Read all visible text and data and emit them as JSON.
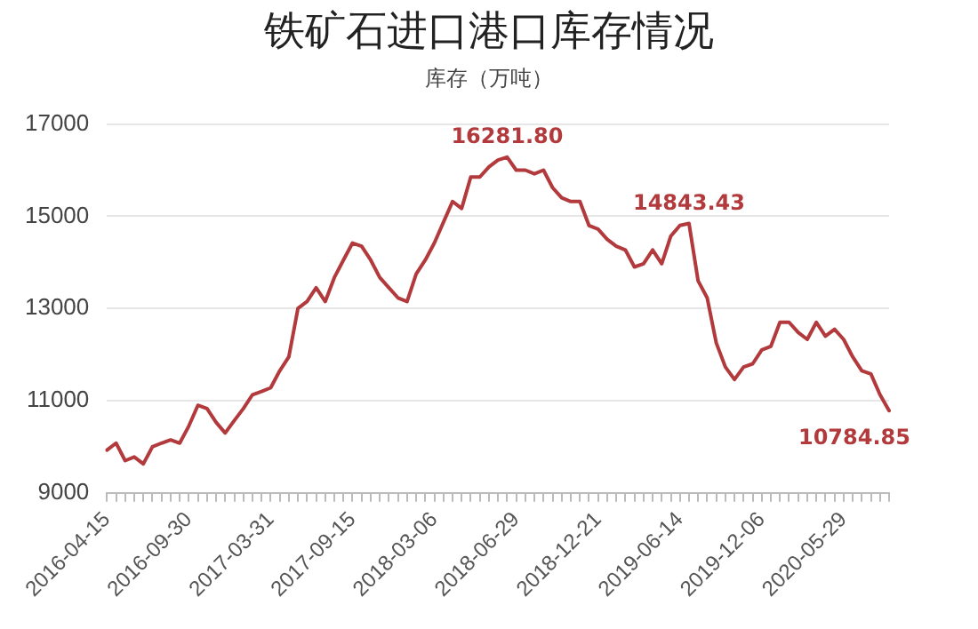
{
  "chart_data": {
    "type": "line",
    "title": "铁矿石进口港口库存情况",
    "subtitle": "库存（万吨）",
    "categories": [
      "2016-04-15",
      null,
      null,
      null,
      null,
      null,
      null,
      null,
      null,
      "2016-09-30",
      null,
      null,
      null,
      null,
      null,
      null,
      null,
      null,
      "2017-03-31",
      null,
      null,
      null,
      null,
      null,
      null,
      null,
      null,
      "2017-09-15",
      null,
      null,
      null,
      null,
      null,
      null,
      null,
      null,
      "2018-03-06",
      null,
      null,
      null,
      null,
      null,
      null,
      null,
      null,
      "2018-06-29",
      null,
      null,
      null,
      null,
      null,
      null,
      null,
      null,
      "2018-12-21",
      null,
      null,
      null,
      null,
      null,
      null,
      null,
      null,
      "2019-06-14",
      null,
      null,
      null,
      null,
      null,
      null,
      null,
      null,
      "2019-12-06",
      null,
      null,
      null,
      null,
      null,
      null,
      null,
      null,
      "2020-05-29",
      null,
      null,
      null,
      null,
      null
    ],
    "series": [
      {
        "color": "#b23a3c",
        "values": [
          9930,
          10080,
          9700,
          9780,
          9630,
          10000,
          10080,
          10150,
          10080,
          10450,
          10900,
          10830,
          10530,
          10300,
          10570,
          10830,
          11130,
          11200,
          11280,
          11650,
          11950,
          13000,
          13150,
          13450,
          13150,
          13670,
          14050,
          14420,
          14350,
          14050,
          13670,
          13450,
          13230,
          13150,
          13750,
          14050,
          14420,
          14870,
          15320,
          15170,
          15850,
          15850,
          16070,
          16220,
          16281.8,
          16000,
          16000,
          15920,
          16000,
          15620,
          15400,
          15320,
          15320,
          14800,
          14720,
          14500,
          14350,
          14270,
          13900,
          13970,
          14270,
          13970,
          14570,
          14800,
          14843.43,
          13600,
          13230,
          12250,
          11730,
          11460,
          11730,
          11800,
          12100,
          12180,
          12700,
          12700,
          12480,
          12330,
          12700,
          12400,
          12550,
          12330,
          11950,
          11650,
          11580,
          11130,
          10784.85
        ],
        "value_labels": [
          null,
          null,
          null,
          null,
          null,
          null,
          null,
          null,
          null,
          null,
          null,
          null,
          null,
          null,
          null,
          null,
          null,
          null,
          null,
          null,
          null,
          null,
          null,
          null,
          null,
          null,
          null,
          null,
          null,
          null,
          null,
          null,
          null,
          null,
          null,
          null,
          null,
          null,
          null,
          null,
          null,
          null,
          null,
          null,
          "16281.80",
          null,
          null,
          null,
          null,
          null,
          null,
          null,
          null,
          null,
          null,
          null,
          null,
          null,
          null,
          null,
          null,
          null,
          null,
          null,
          "14843.43",
          null,
          null,
          null,
          null,
          null,
          null,
          null,
          null,
          null,
          null,
          null,
          null,
          null,
          null,
          null,
          null,
          null,
          null,
          null,
          null,
          null,
          "10784.85"
        ]
      }
    ],
    "ylim": [
      9000,
      17000
    ],
    "yticks": [
      9000,
      11000,
      13000,
      15000,
      17000
    ],
    "grid": "y",
    "marker": "none",
    "line_style": "solid",
    "legend": false
  }
}
